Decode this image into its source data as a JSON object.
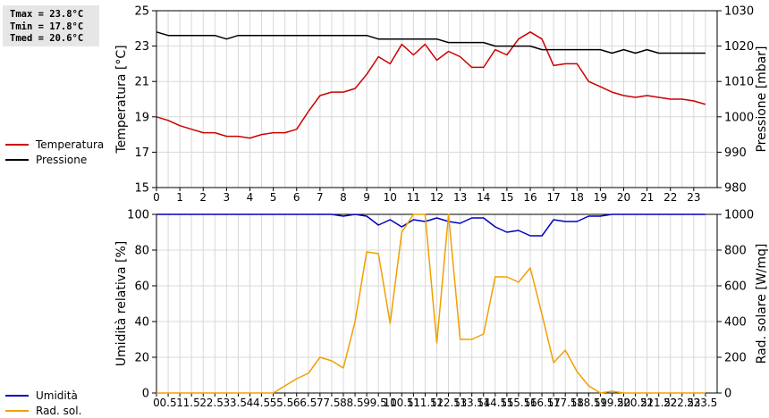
{
  "stats": {
    "tmax": "Tmax = 23.8°C",
    "tmin": "Tmin = 17.8°C",
    "tmed": "Tmed = 20.6°C"
  },
  "legend_top": [
    {
      "label": "Temperatura",
      "color": "#cc0000"
    },
    {
      "label": "Pressione",
      "color": "#000000"
    }
  ],
  "legend_bottom": [
    {
      "label": "Umidità",
      "color": "#0000bb"
    },
    {
      "label": "Rad. sol.",
      "color": "#f0a000"
    }
  ],
  "chart_data": [
    {
      "type": "line",
      "ylabel": "Temperatura [°C]",
      "y2label": "Pressione [mbar]",
      "xlim": [
        0,
        24
      ],
      "xticks": [
        0,
        1,
        2,
        3,
        4,
        5,
        6,
        7,
        8,
        9,
        10,
        11,
        12,
        13,
        14,
        15,
        16,
        17,
        18,
        19,
        20,
        21,
        22,
        23
      ],
      "ylim": [
        15,
        25
      ],
      "yticks": [
        15,
        17,
        19,
        21,
        23,
        25
      ],
      "y2lim": [
        980,
        1030
      ],
      "y2ticks": [
        980,
        990,
        1000,
        1010,
        1020,
        1030
      ],
      "grid": true,
      "series": [
        {
          "name": "Temperatura",
          "axis": "left",
          "color": "#cc0000",
          "x": [
            0,
            0.5,
            1,
            1.5,
            2,
            2.5,
            3,
            3.5,
            4,
            4.5,
            5,
            5.5,
            6,
            6.5,
            7,
            7.5,
            8,
            8.5,
            9,
            9.5,
            10,
            10.5,
            11,
            11.5,
            12,
            12.5,
            13,
            13.5,
            14,
            14.5,
            15,
            15.5,
            16,
            16.5,
            17,
            17.5,
            18,
            18.5,
            19,
            19.5,
            20,
            20.5,
            21,
            21.5,
            22,
            22.5,
            23,
            23.5
          ],
          "y": [
            19.0,
            18.8,
            18.5,
            18.3,
            18.1,
            18.1,
            17.9,
            17.9,
            17.8,
            18.0,
            18.1,
            18.1,
            18.3,
            19.3,
            20.2,
            20.4,
            20.4,
            20.6,
            21.4,
            22.4,
            22.0,
            23.1,
            22.5,
            23.1,
            22.2,
            22.7,
            22.4,
            21.8,
            21.8,
            22.8,
            22.5,
            23.4,
            23.8,
            23.4,
            21.9,
            22.0,
            22.0,
            21.0,
            20.7,
            20.4,
            20.2,
            20.1,
            20.2,
            20.1,
            20.0,
            20.0,
            19.9,
            19.7
          ]
        },
        {
          "name": "Pressione",
          "axis": "right",
          "color": "#000000",
          "x": [
            0,
            0.5,
            1,
            1.5,
            2,
            2.5,
            3,
            3.5,
            4,
            4.5,
            5,
            5.5,
            6,
            6.5,
            7,
            7.5,
            8,
            8.5,
            9,
            9.5,
            10,
            10.5,
            11,
            11.5,
            12,
            12.5,
            13,
            13.5,
            14,
            14.5,
            15,
            15.5,
            16,
            16.5,
            17,
            17.5,
            18,
            18.5,
            19,
            19.5,
            20,
            20.5,
            21,
            21.5,
            22,
            22.5,
            23,
            23.5
          ],
          "y": [
            1024,
            1023,
            1023,
            1023,
            1023,
            1023,
            1022,
            1023,
            1023,
            1023,
            1023,
            1023,
            1023,
            1023,
            1023,
            1023,
            1023,
            1023,
            1023,
            1022,
            1022,
            1022,
            1022,
            1022,
            1022,
            1021,
            1021,
            1021,
            1021,
            1020,
            1020,
            1020,
            1020,
            1019,
            1019,
            1019,
            1019,
            1019,
            1019,
            1018,
            1019,
            1018,
            1019,
            1018,
            1018,
            1018,
            1018,
            1018
          ]
        }
      ]
    },
    {
      "type": "line",
      "ylabel": "Umidità relativa [%]",
      "y2label": "Rad. solare [W/mq]",
      "xlim": [
        0,
        24
      ],
      "xticks": [
        0,
        0.5,
        1,
        1.5,
        2,
        2.5,
        3,
        3.5,
        4,
        4.5,
        5,
        5.5,
        6,
        6.5,
        7,
        7.5,
        8,
        8.5,
        9,
        9.5,
        10,
        10.5,
        11,
        11.5,
        12,
        12.5,
        13,
        13.5,
        14,
        14.5,
        15,
        15.5,
        16,
        16.5,
        17,
        17.5,
        18,
        18.5,
        19,
        19.5,
        20,
        20.5,
        21,
        21.5,
        22,
        22.5,
        23,
        23.5
      ],
      "ylim": [
        0,
        100
      ],
      "yticks": [
        0,
        20,
        40,
        60,
        80,
        100
      ],
      "y2lim": [
        0,
        1000
      ],
      "y2ticks": [
        0,
        200,
        400,
        600,
        800,
        1000
      ],
      "grid": true,
      "series": [
        {
          "name": "Umidità",
          "axis": "left",
          "color": "#0000bb",
          "x": [
            0,
            0.5,
            1,
            1.5,
            2,
            2.5,
            3,
            3.5,
            4,
            4.5,
            5,
            5.5,
            6,
            6.5,
            7,
            7.5,
            8,
            8.5,
            9,
            9.5,
            10,
            10.5,
            11,
            11.5,
            12,
            12.5,
            13,
            13.5,
            14,
            14.5,
            15,
            15.5,
            16,
            16.5,
            17,
            17.5,
            18,
            18.5,
            19,
            19.5,
            20,
            20.5,
            21,
            21.5,
            22,
            22.5,
            23,
            23.5
          ],
          "y": [
            100,
            100,
            100,
            100,
            100,
            100,
            100,
            100,
            100,
            100,
            100,
            100,
            100,
            100,
            100,
            100,
            99,
            100,
            99,
            94,
            97,
            93,
            97,
            96,
            98,
            96,
            95,
            98,
            98,
            93,
            90,
            91,
            88,
            88,
            97,
            96,
            96,
            99,
            99,
            100,
            100,
            100,
            100,
            100,
            100,
            100,
            100,
            100
          ]
        },
        {
          "name": "Rad. sol.",
          "axis": "right",
          "color": "#f0a000",
          "x": [
            0,
            0.5,
            1,
            1.5,
            2,
            2.5,
            3,
            3.5,
            4,
            4.5,
            5,
            5.5,
            6,
            6.5,
            7,
            7.5,
            8,
            8.5,
            9,
            9.5,
            10,
            10.5,
            11,
            11.5,
            12,
            12.5,
            13,
            13.5,
            14,
            14.5,
            15,
            15.5,
            16,
            16.5,
            17,
            17.5,
            18,
            18.5,
            19,
            19.5,
            20,
            20.5,
            21,
            21.5,
            22,
            22.5,
            23,
            23.5
          ],
          "y": [
            0,
            0,
            0,
            0,
            0,
            0,
            0,
            0,
            0,
            0,
            0,
            40,
            80,
            110,
            200,
            180,
            140,
            400,
            790,
            780,
            390,
            900,
            1000,
            1000,
            280,
            1000,
            300,
            300,
            330,
            650,
            650,
            620,
            700,
            440,
            170,
            240,
            120,
            40,
            0,
            10,
            0,
            0,
            0,
            0,
            0,
            0,
            0,
            0
          ]
        }
      ]
    }
  ]
}
